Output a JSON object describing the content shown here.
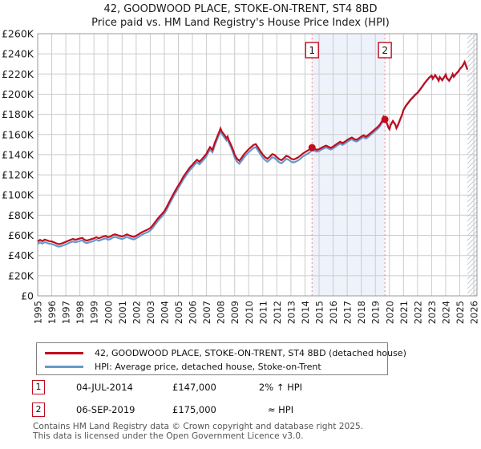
{
  "title": {
    "line1": "42, GOODWOOD PLACE, STOKE-ON-TRENT, ST4 8BD",
    "line2": "Price paid vs. HM Land Registry's House Price Index (HPI)"
  },
  "legend": {
    "items": [
      {
        "label": "42, GOODWOOD PLACE, STOKE-ON-TRENT, ST4 8BD (detached house)",
        "color": "#c00d1e"
      },
      {
        "label": "HPI: Average price, detached house, Stoke-on-Trent",
        "color": "#6699cc"
      }
    ]
  },
  "sales": [
    {
      "num": "1",
      "date": "04-JUL-2014",
      "price": "£147,000",
      "relation": "2% ↑ HPI",
      "year": 2014.5,
      "value_k": 147
    },
    {
      "num": "2",
      "date": "06-SEP-2019",
      "price": "£175,000",
      "relation": "≈ HPI",
      "year": 2019.68,
      "value_k": 175
    }
  ],
  "footer": {
    "line1": "Contains HM Land Registry data © Crown copyright and database right 2025.",
    "line2": "This data is licensed under the Open Government Licence v3.0."
  },
  "colors": {
    "property_line": "#c00d1e",
    "hpi_line": "#6699cc",
    "sale_marker": "#c00d1e",
    "sale_dashed_line": "#ee8888",
    "shade": "#eef2fb",
    "grid": "#cccccc",
    "plot_border": "#999999",
    "hatch": "#c2c8d0",
    "tick_text": "#1a1a1a"
  },
  "chart_data": {
    "type": "line",
    "title": "42, GOODWOOD PLACE, STOKE-ON-TRENT, ST4 8BD — Price paid vs. HPI",
    "xlabel": "",
    "ylabel": "",
    "units": "GBP thousands",
    "grid": true,
    "legend_position": "bottom",
    "xlim": [
      1995,
      2026.25
    ],
    "ylim": [
      0,
      260
    ],
    "future_hatch_start": 2025.54,
    "shaded_region": [
      2014.5,
      2019.68
    ],
    "x_ticks": [
      "1995",
      "1996",
      "1997",
      "1998",
      "1999",
      "2000",
      "2001",
      "2002",
      "2003",
      "2004",
      "2005",
      "2006",
      "2007",
      "2008",
      "2009",
      "2010",
      "2011",
      "2012",
      "2013",
      "2014",
      "2015",
      "2016",
      "2017",
      "2018",
      "2019",
      "2020",
      "2021",
      "2022",
      "2023",
      "2024",
      "2025",
      "2026"
    ],
    "y_ticks": [
      {
        "value": 0,
        "label": "£0"
      },
      {
        "value": 20,
        "label": "£20K"
      },
      {
        "value": 40,
        "label": "£40K"
      },
      {
        "value": 60,
        "label": "£60K"
      },
      {
        "value": 80,
        "label": "£80K"
      },
      {
        "value": 100,
        "label": "£100K"
      },
      {
        "value": 120,
        "label": "£120K"
      },
      {
        "value": 140,
        "label": "£140K"
      },
      {
        "value": 160,
        "label": "£160K"
      },
      {
        "value": 180,
        "label": "£180K"
      },
      {
        "value": 200,
        "label": "£200K"
      },
      {
        "value": 220,
        "label": "£220K"
      },
      {
        "value": 240,
        "label": "£240K"
      },
      {
        "value": 260,
        "label": "£260K"
      }
    ],
    "series": [
      {
        "name": "42, GOODWOOD PLACE, STOKE-ON-TRENT, ST4 8BD (detached house)",
        "color": "#c00d1e",
        "column": 1
      },
      {
        "name": "HPI: Average price, detached house, Stoke-on-Trent",
        "color": "#6699cc",
        "column": 2
      }
    ],
    "points": [
      [
        1995.0,
        54.0,
        51.5
      ],
      [
        1995.17,
        55.5,
        53.0
      ],
      [
        1995.33,
        54.3,
        51.8
      ],
      [
        1995.5,
        55.8,
        53.3
      ],
      [
        1995.67,
        55.0,
        52.5
      ],
      [
        1995.83,
        54.2,
        51.7
      ],
      [
        1996.0,
        54.0,
        51.5
      ],
      [
        1996.17,
        53.0,
        50.5
      ],
      [
        1996.33,
        52.0,
        49.5
      ],
      [
        1996.5,
        51.3,
        48.8
      ],
      [
        1996.67,
        51.8,
        49.3
      ],
      [
        1996.83,
        52.6,
        50.1
      ],
      [
        1997.0,
        53.5,
        51.0
      ],
      [
        1997.17,
        54.6,
        52.1
      ],
      [
        1997.33,
        55.5,
        53.0
      ],
      [
        1997.5,
        56.5,
        54.0
      ],
      [
        1997.67,
        55.6,
        53.1
      ],
      [
        1997.83,
        56.2,
        53.7
      ],
      [
        1998.0,
        56.9,
        54.4
      ],
      [
        1998.17,
        57.5,
        55.0
      ],
      [
        1998.33,
        55.6,
        53.1
      ],
      [
        1998.5,
        54.8,
        52.3
      ],
      [
        1998.67,
        55.6,
        53.1
      ],
      [
        1998.83,
        56.3,
        53.8
      ],
      [
        1999.0,
        57.0,
        54.5
      ],
      [
        1999.17,
        58.2,
        55.7
      ],
      [
        1999.33,
        57.1,
        54.6
      ],
      [
        1999.5,
        58.0,
        55.5
      ],
      [
        1999.67,
        58.9,
        56.4
      ],
      [
        1999.83,
        59.5,
        57.0
      ],
      [
        2000.0,
        58.1,
        55.6
      ],
      [
        2000.17,
        58.9,
        56.4
      ],
      [
        2000.33,
        60.2,
        57.7
      ],
      [
        2000.5,
        61.0,
        58.5
      ],
      [
        2000.67,
        60.2,
        57.7
      ],
      [
        2000.83,
        59.5,
        57.0
      ],
      [
        2001.0,
        58.8,
        56.3
      ],
      [
        2001.17,
        59.8,
        57.3
      ],
      [
        2001.33,
        61.0,
        58.5
      ],
      [
        2001.5,
        60.0,
        57.5
      ],
      [
        2001.67,
        59.0,
        56.5
      ],
      [
        2001.83,
        58.4,
        55.9
      ],
      [
        2002.0,
        59.6,
        57.1
      ],
      [
        2002.17,
        61.0,
        58.5
      ],
      [
        2002.33,
        62.4,
        59.9
      ],
      [
        2002.5,
        63.8,
        61.3
      ],
      [
        2002.67,
        64.8,
        62.3
      ],
      [
        2002.83,
        65.8,
        63.3
      ],
      [
        2003.0,
        67.2,
        64.7
      ],
      [
        2003.17,
        69.8,
        67.3
      ],
      [
        2003.33,
        72.8,
        70.3
      ],
      [
        2003.5,
        76.0,
        73.5
      ],
      [
        2003.67,
        78.8,
        76.3
      ],
      [
        2003.83,
        81.2,
        78.7
      ],
      [
        2004.0,
        84.0,
        81.5
      ],
      [
        2004.17,
        88.0,
        85.5
      ],
      [
        2004.33,
        92.5,
        90.0
      ],
      [
        2004.5,
        97.0,
        94.5
      ],
      [
        2004.67,
        101.5,
        99.0
      ],
      [
        2004.83,
        105.5,
        103.0
      ],
      [
        2005.0,
        109.5,
        107.0
      ],
      [
        2005.17,
        113.5,
        111.0
      ],
      [
        2005.33,
        117.5,
        115.0
      ],
      [
        2005.5,
        121.0,
        118.5
      ],
      [
        2005.67,
        124.5,
        122.0
      ],
      [
        2005.83,
        127.5,
        125.0
      ],
      [
        2006.0,
        130.0,
        127.5
      ],
      [
        2006.17,
        132.8,
        130.3
      ],
      [
        2006.33,
        135.0,
        132.5
      ],
      [
        2006.5,
        133.0,
        130.5
      ],
      [
        2006.67,
        135.5,
        133.0
      ],
      [
        2006.83,
        138.0,
        135.5
      ],
      [
        2007.0,
        141.0,
        138.5
      ],
      [
        2007.08,
        143.5,
        141.0
      ],
      [
        2007.25,
        147.5,
        145.0
      ],
      [
        2007.42,
        144.8,
        142.3
      ],
      [
        2007.5,
        148.0,
        145.5
      ],
      [
        2007.58,
        151.5,
        149.0
      ],
      [
        2007.75,
        157.5,
        155.0
      ],
      [
        2007.92,
        163.0,
        160.5
      ],
      [
        2008.0,
        166.0,
        163.5
      ],
      [
        2008.08,
        163.0,
        160.5
      ],
      [
        2008.25,
        160.0,
        157.5
      ],
      [
        2008.42,
        156.5,
        154.0
      ],
      [
        2008.5,
        158.0,
        155.5
      ],
      [
        2008.58,
        154.5,
        152.0
      ],
      [
        2008.75,
        149.5,
        147.0
      ],
      [
        2008.92,
        143.5,
        141.0
      ],
      [
        2009.0,
        140.0,
        137.0
      ],
      [
        2009.17,
        136.0,
        133.0
      ],
      [
        2009.33,
        134.0,
        131.0
      ],
      [
        2009.5,
        137.0,
        134.0
      ],
      [
        2009.67,
        140.5,
        137.5
      ],
      [
        2009.83,
        143.0,
        140.0
      ],
      [
        2010.0,
        145.5,
        142.5
      ],
      [
        2010.17,
        147.5,
        144.5
      ],
      [
        2010.33,
        149.5,
        146.5
      ],
      [
        2010.5,
        150.5,
        147.5
      ],
      [
        2010.67,
        147.0,
        144.0
      ],
      [
        2010.83,
        143.5,
        140.5
      ],
      [
        2011.0,
        140.0,
        137.0
      ],
      [
        2011.17,
        137.5,
        134.5
      ],
      [
        2011.33,
        136.0,
        133.0
      ],
      [
        2011.5,
        138.0,
        135.0
      ],
      [
        2011.67,
        140.5,
        137.5
      ],
      [
        2011.83,
        139.8,
        136.8
      ],
      [
        2012.0,
        137.5,
        134.5
      ],
      [
        2012.17,
        135.5,
        132.5
      ],
      [
        2012.33,
        134.5,
        131.5
      ],
      [
        2012.5,
        136.5,
        133.5
      ],
      [
        2012.67,
        138.8,
        135.8
      ],
      [
        2012.83,
        138.0,
        135.0
      ],
      [
        2013.0,
        136.2,
        133.2
      ],
      [
        2013.17,
        135.2,
        132.2
      ],
      [
        2013.33,
        136.0,
        133.0
      ],
      [
        2013.5,
        137.2,
        134.2
      ],
      [
        2013.67,
        139.0,
        136.0
      ],
      [
        2013.83,
        141.0,
        138.0
      ],
      [
        2014.0,
        142.5,
        139.5
      ],
      [
        2014.17,
        143.8,
        140.8
      ],
      [
        2014.33,
        145.2,
        142.2
      ],
      [
        2014.5,
        147.0,
        144.1
      ],
      [
        2014.67,
        146.0,
        144.0
      ],
      [
        2014.83,
        144.8,
        143.0
      ],
      [
        2015.0,
        145.5,
        143.7
      ],
      [
        2015.17,
        146.8,
        145.0
      ],
      [
        2015.33,
        148.0,
        146.2
      ],
      [
        2015.5,
        149.0,
        147.2
      ],
      [
        2015.67,
        147.8,
        146.0
      ],
      [
        2015.83,
        146.8,
        145.0
      ],
      [
        2016.0,
        148.0,
        146.2
      ],
      [
        2016.17,
        149.8,
        148.0
      ],
      [
        2016.33,
        151.2,
        149.4
      ],
      [
        2016.5,
        152.8,
        151.0
      ],
      [
        2016.67,
        151.5,
        149.7
      ],
      [
        2016.83,
        152.8,
        151.0
      ],
      [
        2017.0,
        154.5,
        152.7
      ],
      [
        2017.17,
        156.0,
        154.2
      ],
      [
        2017.33,
        157.0,
        155.2
      ],
      [
        2017.5,
        155.5,
        153.7
      ],
      [
        2017.67,
        154.8,
        153.0
      ],
      [
        2017.83,
        156.2,
        154.4
      ],
      [
        2018.0,
        158.0,
        156.2
      ],
      [
        2018.17,
        159.2,
        157.4
      ],
      [
        2018.33,
        157.8,
        156.0
      ],
      [
        2018.5,
        159.5,
        157.7
      ],
      [
        2018.67,
        161.5,
        159.7
      ],
      [
        2018.83,
        163.5,
        161.7
      ],
      [
        2019.0,
        165.5,
        163.7
      ],
      [
        2019.17,
        167.5,
        165.7
      ],
      [
        2019.33,
        170.0,
        168.2
      ],
      [
        2019.5,
        174.0,
        172.2
      ],
      [
        2019.58,
        177.5,
        175.7
      ],
      [
        2019.68,
        175.0,
        174.6
      ],
      [
        2019.83,
        171.0,
        170.6
      ],
      [
        2019.92,
        167.5,
        167.1
      ],
      [
        2020.0,
        165.5,
        165.1
      ],
      [
        2020.08,
        169.5,
        169.1
      ],
      [
        2020.25,
        173.5,
        173.1
      ],
      [
        2020.42,
        170.0,
        169.6
      ],
      [
        2020.5,
        166.5,
        166.1
      ],
      [
        2020.58,
        168.5,
        168.1
      ],
      [
        2020.75,
        174.5,
        174.1
      ],
      [
        2020.92,
        180.5,
        180.1
      ],
      [
        2021.0,
        184.5,
        184.1
      ],
      [
        2021.17,
        188.5,
        188.1
      ],
      [
        2021.33,
        191.5,
        191.1
      ],
      [
        2021.5,
        194.5,
        194.1
      ],
      [
        2021.67,
        197.0,
        196.6
      ],
      [
        2021.83,
        199.5,
        199.1
      ],
      [
        2022.0,
        201.5,
        201.1
      ],
      [
        2022.17,
        204.5,
        204.1
      ],
      [
        2022.33,
        207.5,
        207.1
      ],
      [
        2022.5,
        211.0,
        210.6
      ],
      [
        2022.67,
        214.0,
        213.6
      ],
      [
        2022.83,
        216.5,
        216.1
      ],
      [
        2023.0,
        218.5,
        218.1
      ],
      [
        2023.08,
        215.5,
        215.1
      ],
      [
        2023.25,
        219.0,
        218.6
      ],
      [
        2023.42,
        215.5,
        215.1
      ],
      [
        2023.5,
        213.5,
        213.1
      ],
      [
        2023.58,
        217.0,
        216.6
      ],
      [
        2023.75,
        214.0,
        213.6
      ],
      [
        2023.92,
        217.5,
        217.1
      ],
      [
        2024.0,
        219.5,
        219.1
      ],
      [
        2024.08,
        216.0,
        215.6
      ],
      [
        2024.25,
        213.5,
        213.1
      ],
      [
        2024.42,
        217.5,
        217.1
      ],
      [
        2024.5,
        220.0,
        219.6
      ],
      [
        2024.58,
        217.5,
        217.1
      ],
      [
        2024.75,
        220.5,
        220.1
      ],
      [
        2024.92,
        223.0,
        222.6
      ],
      [
        2025.0,
        225.0,
        224.6
      ],
      [
        2025.17,
        227.5,
        227.1
      ],
      [
        2025.25,
        229.5,
        229.1
      ],
      [
        2025.35,
        232.0,
        231.8
      ],
      [
        2025.45,
        228.0,
        227.8
      ],
      [
        2025.54,
        224.5,
        224.3
      ]
    ]
  }
}
